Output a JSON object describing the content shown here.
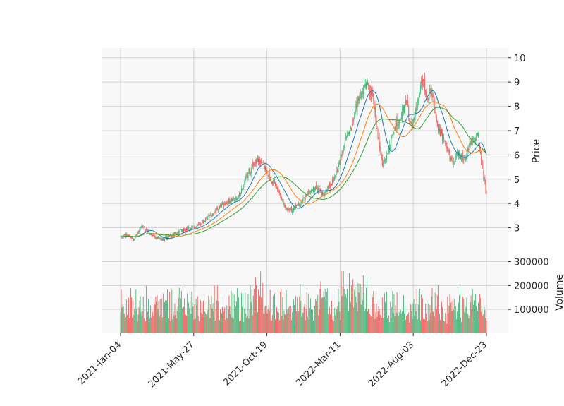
{
  "chart_data": {
    "type": "candlestick",
    "price_panel": {
      "ylabel": "Price",
      "ylim": [
        2.0,
        10.4
      ],
      "yticks": [
        "3",
        "4",
        "5",
        "6",
        "7",
        "8",
        "9",
        "10"
      ],
      "grid": true,
      "background": "#f8f8f8"
    },
    "volume_panel": {
      "ylabel": "Volume",
      "ylim": [
        0,
        340000
      ],
      "yticks": [
        "100000",
        "200000",
        "300000"
      ]
    },
    "x_tick_labels": [
      "2021-Jan-04",
      "2021-May-27",
      "2021-Oct-19",
      "2022-Mar-11",
      "2022-Aug-03",
      "2022-Dec-23"
    ],
    "n_sessions": 500,
    "close_keypoints": [
      [
        0,
        2.6
      ],
      [
        10,
        2.7
      ],
      [
        18,
        2.55
      ],
      [
        30,
        3.05
      ],
      [
        40,
        2.75
      ],
      [
        55,
        2.5
      ],
      [
        65,
        2.6
      ],
      [
        80,
        2.85
      ],
      [
        100,
        3.0
      ],
      [
        115,
        3.3
      ],
      [
        130,
        3.7
      ],
      [
        145,
        4.05
      ],
      [
        160,
        4.2
      ],
      [
        175,
        5.3
      ],
      [
        185,
        5.8
      ],
      [
        195,
        5.6
      ],
      [
        205,
        5.0
      ],
      [
        215,
        4.6
      ],
      [
        225,
        3.8
      ],
      [
        235,
        3.75
      ],
      [
        245,
        4.0
      ],
      [
        255,
        4.4
      ],
      [
        265,
        4.65
      ],
      [
        275,
        4.4
      ],
      [
        285,
        4.7
      ],
      [
        295,
        5.3
      ],
      [
        305,
        6.4
      ],
      [
        315,
        7.2
      ],
      [
        325,
        8.4
      ],
      [
        335,
        8.9
      ],
      [
        345,
        8.3
      ],
      [
        350,
        7.0
      ],
      [
        357,
        5.7
      ],
      [
        363,
        5.9
      ],
      [
        370,
        6.8
      ],
      [
        380,
        7.5
      ],
      [
        390,
        8.1
      ],
      [
        398,
        7.1
      ],
      [
        405,
        8.3
      ],
      [
        412,
        9.3
      ],
      [
        418,
        8.4
      ],
      [
        424,
        8.6
      ],
      [
        432,
        7.2
      ],
      [
        442,
        6.5
      ],
      [
        452,
        5.7
      ],
      [
        460,
        6.1
      ],
      [
        468,
        5.8
      ],
      [
        478,
        6.5
      ],
      [
        488,
        6.8
      ],
      [
        493,
        5.5
      ],
      [
        499,
        4.4
      ]
    ],
    "moving_averages": [
      {
        "window": 20,
        "color": "#1f77b4"
      },
      {
        "window": 40,
        "color": "#ff7f0e"
      },
      {
        "window": 60,
        "color": "#2ca02c"
      }
    ],
    "up_color": "#3cb371",
    "down_color": "#ef5350"
  }
}
